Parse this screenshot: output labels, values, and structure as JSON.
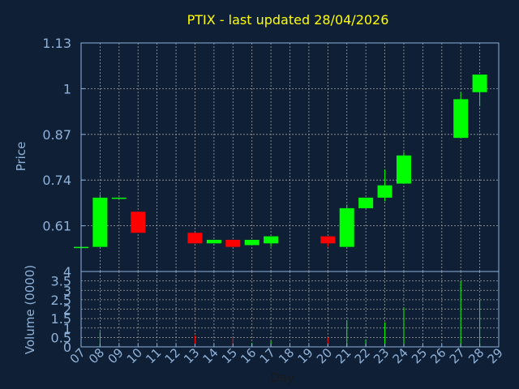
{
  "chart_data": {
    "type": "candlestick",
    "title": "PTIX - last updated 28/04/2026",
    "price_axis": {
      "label": "Price",
      "ylim": [
        0.48,
        1.13
      ],
      "ticks": [
        {
          "value": 0.61,
          "label": "0.61"
        },
        {
          "value": 0.74,
          "label": "0.74"
        },
        {
          "value": 0.87,
          "label": "0.87"
        },
        {
          "value": 1.0,
          "label": "1"
        },
        {
          "value": 1.13,
          "label": "1.13"
        }
      ]
    },
    "volume_axis": {
      "label": "Volume (0000)",
      "ylim": [
        0,
        4
      ],
      "ticks": [
        {
          "value": 0,
          "label": "0"
        },
        {
          "value": 0.5,
          "label": "0.5"
        },
        {
          "value": 1,
          "label": "1"
        },
        {
          "value": 1.5,
          "label": "1.5"
        },
        {
          "value": 2,
          "label": "2"
        },
        {
          "value": 2.5,
          "label": "2.5"
        },
        {
          "value": 3,
          "label": "3"
        },
        {
          "value": 3.5,
          "label": "3.5"
        },
        {
          "value": 4,
          "label": "4"
        }
      ]
    },
    "x_axis": {
      "label": "Day",
      "tick_labels": [
        "07",
        "08",
        "09",
        "10",
        "11",
        "12",
        "13",
        "14",
        "15",
        "16",
        "17",
        "18",
        "19",
        "20",
        "21",
        "22",
        "23",
        "24",
        "25",
        "26",
        "27",
        "28",
        "29"
      ]
    },
    "grid": true,
    "colors": {
      "up": "#00ff00",
      "down": "#ff0000",
      "background": "#0f2036",
      "axis": "#8fb1d8",
      "title": "#ffff00",
      "grid": "#a0a0a0"
    },
    "candles": [
      {
        "day": "07",
        "open": 0.55,
        "high": 0.55,
        "low": 0.55,
        "close": 0.55
      },
      {
        "day": "08",
        "open": 0.55,
        "high": 0.7,
        "low": 0.55,
        "close": 0.69
      },
      {
        "day": "09",
        "open": 0.69,
        "high": 0.69,
        "low": 0.69,
        "close": 0.69
      },
      {
        "day": "10",
        "open": 0.65,
        "high": 0.65,
        "low": 0.59,
        "close": 0.59
      },
      {
        "day": "13",
        "open": 0.59,
        "high": 0.59,
        "low": 0.56,
        "close": 0.56
      },
      {
        "day": "14",
        "open": 0.56,
        "high": 0.57,
        "low": 0.56,
        "close": 0.57
      },
      {
        "day": "15",
        "open": 0.57,
        "high": 0.57,
        "low": 0.55,
        "close": 0.55
      },
      {
        "day": "16",
        "open": 0.555,
        "high": 0.57,
        "low": 0.555,
        "close": 0.57
      },
      {
        "day": "17",
        "open": 0.56,
        "high": 0.58,
        "low": 0.55,
        "close": 0.58
      },
      {
        "day": "20",
        "open": 0.58,
        "high": 0.58,
        "low": 0.55,
        "close": 0.56
      },
      {
        "day": "21",
        "open": 0.55,
        "high": 0.67,
        "low": 0.55,
        "close": 0.66
      },
      {
        "day": "22",
        "open": 0.66,
        "high": 0.69,
        "low": 0.66,
        "close": 0.69
      },
      {
        "day": "23",
        "open": 0.69,
        "high": 0.77,
        "low": 0.68,
        "close": 0.725
      },
      {
        "day": "24",
        "open": 0.73,
        "high": 0.82,
        "low": 0.73,
        "close": 0.81
      },
      {
        "day": "27",
        "open": 0.86,
        "high": 0.99,
        "low": 0.86,
        "close": 0.97
      },
      {
        "day": "28",
        "open": 0.99,
        "high": 1.04,
        "low": 0.95,
        "close": 1.04
      }
    ],
    "volume": [
      {
        "day": "07",
        "value": 0,
        "color": "up"
      },
      {
        "day": "08",
        "value": 0.8,
        "color": "up"
      },
      {
        "day": "09",
        "value": 0,
        "color": "up"
      },
      {
        "day": "10",
        "value": 0.05,
        "color": "down"
      },
      {
        "day": "13",
        "value": 0.6,
        "color": "down"
      },
      {
        "day": "14",
        "value": 0.05,
        "color": "up"
      },
      {
        "day": "15",
        "value": 0.5,
        "color": "down"
      },
      {
        "day": "16",
        "value": 0.2,
        "color": "up"
      },
      {
        "day": "17",
        "value": 0.3,
        "color": "up"
      },
      {
        "day": "20",
        "value": 0.5,
        "color": "down"
      },
      {
        "day": "21",
        "value": 1.4,
        "color": "up"
      },
      {
        "day": "22",
        "value": 0.4,
        "color": "up"
      },
      {
        "day": "23",
        "value": 1.3,
        "color": "up"
      },
      {
        "day": "24",
        "value": 2.1,
        "color": "up"
      },
      {
        "day": "27",
        "value": 3.5,
        "color": "up"
      },
      {
        "day": "28",
        "value": 2.5,
        "color": "up"
      }
    ]
  }
}
